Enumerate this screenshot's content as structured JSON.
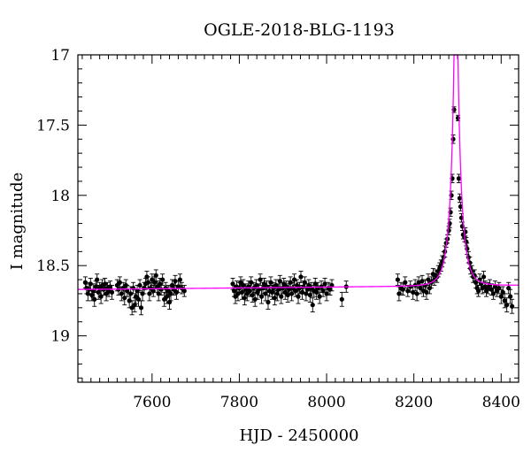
{
  "chart_data": {
    "type": "scatter",
    "title": "OGLE-2018-BLG-1193",
    "xlabel": "HJD - 2450000",
    "ylabel": "I magnitude",
    "xlim": [
      7430,
      8440
    ],
    "ylim": [
      19.33,
      17.0
    ],
    "y_inverted": true,
    "grid": false,
    "x_ticks": [
      7600,
      7800,
      8000,
      8200,
      8400
    ],
    "y_ticks": [
      17,
      17.5,
      18,
      18.5,
      19
    ],
    "x_minor_step": 20,
    "y_minor_step": 0.1,
    "colors": {
      "data": "#000000",
      "model": "#ff00ff"
    },
    "model": {
      "name": "",
      "baseline": 18.67,
      "baseline_slope": 3e-05,
      "peak_time": 8296.5,
      "peak_mag": 16.9,
      "tE": 21,
      "u0": 0.06
    },
    "series": [
      {
        "name": "",
        "points": [
          [
            7447,
            18.62,
            0.04
          ],
          [
            7450,
            18.66,
            0.04
          ],
          [
            7453,
            18.7,
            0.05
          ],
          [
            7456,
            18.67,
            0.04
          ],
          [
            7459,
            18.63,
            0.04
          ],
          [
            7462,
            18.71,
            0.04
          ],
          [
            7465,
            18.68,
            0.05
          ],
          [
            7468,
            18.74,
            0.05
          ],
          [
            7471,
            18.65,
            0.04
          ],
          [
            7474,
            18.6,
            0.04
          ],
          [
            7477,
            18.69,
            0.05
          ],
          [
            7480,
            18.66,
            0.04
          ],
          [
            7483,
            18.72,
            0.05
          ],
          [
            7486,
            18.64,
            0.04
          ],
          [
            7489,
            18.67,
            0.04
          ],
          [
            7492,
            18.63,
            0.04
          ],
          [
            7495,
            18.7,
            0.05
          ],
          [
            7498,
            18.66,
            0.04
          ],
          [
            7501,
            18.68,
            0.04
          ],
          [
            7504,
            18.65,
            0.04
          ],
          [
            7508,
            18.69,
            0.05
          ],
          [
            7520,
            18.64,
            0.04
          ],
          [
            7523,
            18.67,
            0.04
          ],
          [
            7526,
            18.62,
            0.04
          ],
          [
            7530,
            18.7,
            0.05
          ],
          [
            7534,
            18.66,
            0.04
          ],
          [
            7537,
            18.73,
            0.05
          ],
          [
            7540,
            18.64,
            0.04
          ],
          [
            7543,
            18.68,
            0.04
          ],
          [
            7548,
            18.75,
            0.05
          ],
          [
            7551,
            18.7,
            0.05
          ],
          [
            7554,
            18.8,
            0.05
          ],
          [
            7557,
            18.66,
            0.04
          ],
          [
            7560,
            18.78,
            0.05
          ],
          [
            7563,
            18.72,
            0.05
          ],
          [
            7566,
            18.68,
            0.04
          ],
          [
            7569,
            18.74,
            0.05
          ],
          [
            7572,
            18.64,
            0.04
          ],
          [
            7575,
            18.8,
            0.05
          ],
          [
            7578,
            18.7,
            0.05
          ],
          [
            7582,
            18.66,
            0.04
          ],
          [
            7585,
            18.63,
            0.04
          ],
          [
            7588,
            18.58,
            0.04
          ],
          [
            7591,
            18.62,
            0.04
          ],
          [
            7594,
            18.7,
            0.05
          ],
          [
            7597,
            18.66,
            0.04
          ],
          [
            7600,
            18.6,
            0.04
          ],
          [
            7603,
            18.68,
            0.04
          ],
          [
            7606,
            18.62,
            0.04
          ],
          [
            7609,
            18.57,
            0.04
          ],
          [
            7612,
            18.65,
            0.04
          ],
          [
            7615,
            18.7,
            0.05
          ],
          [
            7618,
            18.63,
            0.04
          ],
          [
            7621,
            18.67,
            0.04
          ],
          [
            7624,
            18.6,
            0.04
          ],
          [
            7628,
            18.74,
            0.05
          ],
          [
            7631,
            18.66,
            0.04
          ],
          [
            7634,
            18.72,
            0.05
          ],
          [
            7637,
            18.68,
            0.04
          ],
          [
            7640,
            18.76,
            0.05
          ],
          [
            7643,
            18.7,
            0.05
          ],
          [
            7646,
            18.64,
            0.04
          ],
          [
            7650,
            18.67,
            0.04
          ],
          [
            7653,
            18.61,
            0.04
          ],
          [
            7656,
            18.69,
            0.05
          ],
          [
            7660,
            18.65,
            0.04
          ],
          [
            7664,
            18.6,
            0.04
          ],
          [
            7668,
            18.66,
            0.04
          ],
          [
            7674,
            18.68,
            0.04
          ],
          [
            7785,
            18.63,
            0.04
          ],
          [
            7788,
            18.68,
            0.04
          ],
          [
            7791,
            18.72,
            0.05
          ],
          [
            7794,
            18.65,
            0.04
          ],
          [
            7797,
            18.7,
            0.05
          ],
          [
            7800,
            18.66,
            0.04
          ],
          [
            7803,
            18.62,
            0.04
          ],
          [
            7806,
            18.69,
            0.05
          ],
          [
            7809,
            18.64,
            0.04
          ],
          [
            7812,
            18.73,
            0.05
          ],
          [
            7815,
            18.67,
            0.04
          ],
          [
            7818,
            18.7,
            0.05
          ],
          [
            7821,
            18.65,
            0.04
          ],
          [
            7824,
            18.68,
            0.04
          ],
          [
            7827,
            18.62,
            0.04
          ],
          [
            7830,
            18.71,
            0.05
          ],
          [
            7833,
            18.66,
            0.04
          ],
          [
            7836,
            18.74,
            0.05
          ],
          [
            7839,
            18.64,
            0.04
          ],
          [
            7842,
            18.69,
            0.05
          ],
          [
            7845,
            18.67,
            0.04
          ],
          [
            7848,
            18.6,
            0.04
          ],
          [
            7851,
            18.72,
            0.05
          ],
          [
            7854,
            18.66,
            0.04
          ],
          [
            7857,
            18.63,
            0.04
          ],
          [
            7860,
            18.7,
            0.05
          ],
          [
            7863,
            18.65,
            0.04
          ],
          [
            7866,
            18.76,
            0.05
          ],
          [
            7869,
            18.68,
            0.04
          ],
          [
            7872,
            18.62,
            0.04
          ],
          [
            7875,
            18.69,
            0.05
          ],
          [
            7878,
            18.66,
            0.04
          ],
          [
            7881,
            18.73,
            0.05
          ],
          [
            7884,
            18.64,
            0.04
          ],
          [
            7887,
            18.7,
            0.05
          ],
          [
            7890,
            18.67,
            0.04
          ],
          [
            7893,
            18.61,
            0.04
          ],
          [
            7896,
            18.72,
            0.05
          ],
          [
            7899,
            18.66,
            0.04
          ],
          [
            7902,
            18.63,
            0.04
          ],
          [
            7905,
            18.69,
            0.05
          ],
          [
            7908,
            18.65,
            0.04
          ],
          [
            7911,
            18.71,
            0.05
          ],
          [
            7914,
            18.67,
            0.04
          ],
          [
            7917,
            18.62,
            0.04
          ],
          [
            7920,
            18.7,
            0.05
          ],
          [
            7923,
            18.66,
            0.04
          ],
          [
            7926,
            18.6,
            0.04
          ],
          [
            7929,
            18.68,
            0.04
          ],
          [
            7932,
            18.64,
            0.04
          ],
          [
            7935,
            18.72,
            0.05
          ],
          [
            7938,
            18.66,
            0.04
          ],
          [
            7941,
            18.58,
            0.04
          ],
          [
            7944,
            18.69,
            0.05
          ],
          [
            7947,
            18.65,
            0.04
          ],
          [
            7950,
            18.62,
            0.04
          ],
          [
            7953,
            18.7,
            0.05
          ],
          [
            7956,
            18.67,
            0.04
          ],
          [
            7959,
            18.64,
            0.04
          ],
          [
            7962,
            18.71,
            0.05
          ],
          [
            7965,
            18.66,
            0.04
          ],
          [
            7968,
            18.78,
            0.05
          ],
          [
            7971,
            18.68,
            0.04
          ],
          [
            7974,
            18.63,
            0.04
          ],
          [
            7977,
            18.69,
            0.05
          ],
          [
            7980,
            18.66,
            0.04
          ],
          [
            7984,
            18.72,
            0.05
          ],
          [
            7988,
            18.65,
            0.04
          ],
          [
            7992,
            18.68,
            0.04
          ],
          [
            7996,
            18.63,
            0.04
          ],
          [
            8000,
            18.7,
            0.05
          ],
          [
            8004,
            18.66,
            0.04
          ],
          [
            8008,
            18.67,
            0.04
          ],
          [
            8012,
            18.64,
            0.04
          ],
          [
            8035,
            18.74,
            0.05
          ],
          [
            8045,
            18.65,
            0.04
          ],
          [
            8163,
            18.6,
            0.04
          ],
          [
            8166,
            18.7,
            0.05
          ],
          [
            8170,
            18.66,
            0.04
          ],
          [
            8175,
            18.67,
            0.04
          ],
          [
            8180,
            18.62,
            0.04
          ],
          [
            8186,
            18.68,
            0.04
          ],
          [
            8192,
            18.65,
            0.04
          ],
          [
            8198,
            18.69,
            0.05
          ],
          [
            8203,
            18.64,
            0.04
          ],
          [
            8207,
            18.7,
            0.05
          ],
          [
            8211,
            18.62,
            0.04
          ],
          [
            8215,
            18.66,
            0.04
          ],
          [
            8219,
            18.61,
            0.04
          ],
          [
            8222,
            18.68,
            0.04
          ],
          [
            8226,
            18.64,
            0.04
          ],
          [
            8229,
            18.69,
            0.05
          ],
          [
            8233,
            18.6,
            0.04
          ],
          [
            8236,
            18.66,
            0.04
          ],
          [
            8240,
            18.62,
            0.04
          ],
          [
            8244,
            18.56,
            0.04
          ],
          [
            8247,
            18.6,
            0.04
          ],
          [
            8250,
            18.57,
            0.04
          ],
          [
            8253,
            18.58,
            0.04
          ],
          [
            8256,
            18.54,
            0.04
          ],
          [
            8259,
            18.52,
            0.04
          ],
          [
            8262,
            18.5,
            0.04
          ],
          [
            8265,
            18.47,
            0.04
          ],
          [
            8268,
            18.44,
            0.04
          ],
          [
            8271,
            18.4,
            0.04
          ],
          [
            8274,
            18.34,
            0.03
          ],
          [
            8277,
            18.31,
            0.03
          ],
          [
            8280,
            18.25,
            0.03
          ],
          [
            8282,
            18.2,
            0.03
          ],
          [
            8284,
            18.12,
            0.03
          ],
          [
            8286,
            18.0,
            0.03
          ],
          [
            8288,
            17.88,
            0.03
          ],
          [
            8290,
            17.6,
            0.03
          ],
          [
            8292,
            17.39,
            0.02
          ],
          [
            8301,
            17.45,
            0.02
          ],
          [
            8303,
            17.88,
            0.03
          ],
          [
            8305,
            18.02,
            0.03
          ],
          [
            8307,
            18.08,
            0.03
          ],
          [
            8309,
            18.16,
            0.03
          ],
          [
            8311,
            18.22,
            0.03
          ],
          [
            8313,
            18.28,
            0.03
          ],
          [
            8316,
            18.3,
            0.03
          ],
          [
            8318,
            18.26,
            0.03
          ],
          [
            8320,
            18.33,
            0.03
          ],
          [
            8322,
            18.38,
            0.04
          ],
          [
            8325,
            18.44,
            0.04
          ],
          [
            8328,
            18.48,
            0.04
          ],
          [
            8330,
            18.52,
            0.04
          ],
          [
            8333,
            18.54,
            0.04
          ],
          [
            8336,
            18.58,
            0.04
          ],
          [
            8339,
            18.57,
            0.04
          ],
          [
            8342,
            18.62,
            0.04
          ],
          [
            8345,
            18.66,
            0.04
          ],
          [
            8348,
            18.68,
            0.04
          ],
          [
            8351,
            18.6,
            0.04
          ],
          [
            8354,
            18.63,
            0.04
          ],
          [
            8357,
            18.66,
            0.04
          ],
          [
            8360,
            18.58,
            0.04
          ],
          [
            8363,
            18.65,
            0.04
          ],
          [
            8366,
            18.68,
            0.04
          ],
          [
            8370,
            18.66,
            0.04
          ],
          [
            8374,
            18.64,
            0.04
          ],
          [
            8378,
            18.67,
            0.04
          ],
          [
            8382,
            18.7,
            0.04
          ],
          [
            8386,
            18.65,
            0.04
          ],
          [
            8390,
            18.68,
            0.04
          ],
          [
            8395,
            18.66,
            0.04
          ],
          [
            8400,
            18.72,
            0.05
          ],
          [
            8404,
            18.69,
            0.04
          ],
          [
            8408,
            18.75,
            0.05
          ],
          [
            8413,
            18.78,
            0.05
          ],
          [
            8417,
            18.66,
            0.04
          ],
          [
            8421,
            18.72,
            0.05
          ],
          [
            8425,
            18.79,
            0.05
          ]
        ]
      }
    ]
  }
}
